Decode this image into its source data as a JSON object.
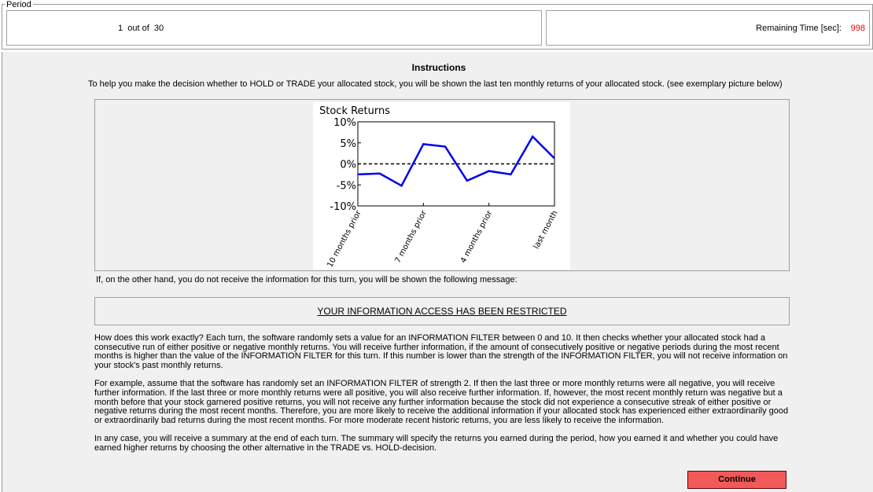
{
  "period": {
    "legend": "Period",
    "counter": "1  out of  30",
    "time_label": "Remaining Time [sec]:",
    "time_value": "998"
  },
  "instructions": {
    "title": "Instructions",
    "intro": "To help you make the decision whether to HOLD or TRADE your allocated stock, you will be shown the last ten monthly returns of your allocated stock. (see exemplary picture below)",
    "alt_text": "If, on the other hand, you do not receive the information for this turn, you will be shown the following message:",
    "restricted": "YOUR INFORMATION ACCESS HAS BEEN RESTRICTED",
    "paragraphs": [
      "How does this work exactly? Each turn, the software randomly sets a value for an INFORMATION FILTER between 0 and 10. It then checks whether your allocated stock had a consecutive run of either positive or negative monthly returns. You will receive further information, if the amount of consecutively positive or negative periods during the most recent months is higher than the value of the INFORMATION FILTER for this turn. If this number is lower than the strength of the INFORMATION FILTER, you will not receive information on your stock's past monthly returns.",
      "For example, assume that the software has randomly set an INFORMATION FILTER of strength 2. If then the last three or more monthly returns were all negative, you will receive further information. If the last three or more monthly returns were all positive, you will also receive further information. If, however, the most recent monthly return was negative but a month before that your stock garnered positive returns, you will not receive any further information because the stock did not experience a consecutive streak of either positive or negative returns during the most recent months. Therefore, you are more likely to receive the additional information if your allocated stock has experienced either extraordinarily good or extraordinarily bad returns during the most recent months. For more moderate recent historic returns, you are less likely to receive the information.",
      "In any case, you will receive a summary at the end of each turn. The summary will specify the returns you earned during the period, how you earned it and whether you could have earned higher returns by choosing the other alternative in the TRADE vs. HOLD-decision."
    ],
    "button": "Continue"
  },
  "chart": {
    "type": "line",
    "title": "Stock Returns",
    "categories": [
      "10 months prior",
      null,
      null,
      "7 months prior",
      null,
      null,
      "4 months prior",
      null,
      null,
      "last month"
    ],
    "values": [
      -2.5,
      -2.3,
      -5.2,
      4.7,
      4.1,
      -4.0,
      -1.7,
      -2.5,
      6.5,
      1.3
    ],
    "color": "#0000ee",
    "ylim": [
      -10,
      10
    ],
    "yticks": [
      {
        "value": 10,
        "label": "10%"
      },
      {
        "value": 5,
        "label": "5%"
      },
      {
        "value": 0,
        "label": "0%"
      },
      {
        "value": -5,
        "label": "-5%"
      },
      {
        "value": -10,
        "label": "-10%"
      }
    ]
  }
}
